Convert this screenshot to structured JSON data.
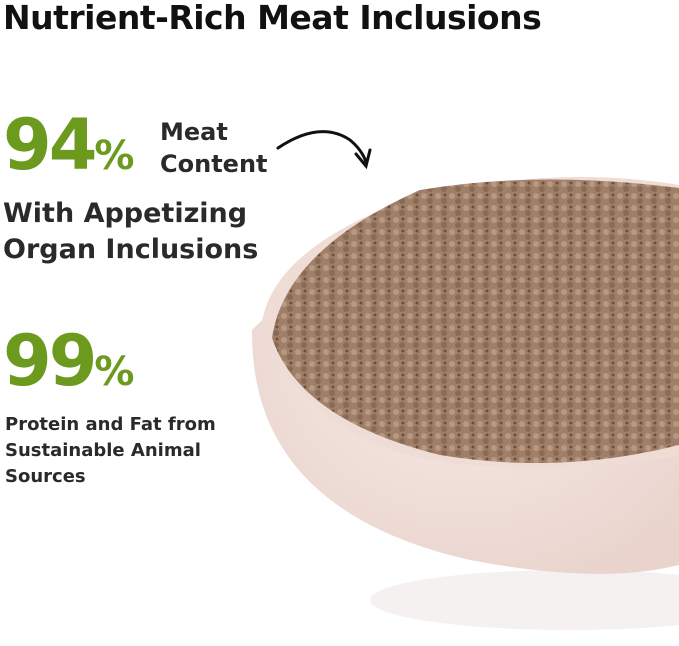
{
  "title": "Nutrient-Rich Meat Inclusions",
  "stat1": {
    "value": "94",
    "unit": "%",
    "label_line1": "Meat",
    "label_line2": "Content",
    "desc_line1": "With Appetizing",
    "desc_line2": "Organ Inclusions"
  },
  "stat2": {
    "value": "99",
    "unit": "%",
    "desc_line1": "Protein and Fat from",
    "desc_line2": "Sustainable Animal",
    "desc_line3": "Sources"
  },
  "colors": {
    "accent": "#6b9a1e",
    "text": "#2a2a2a",
    "bowl": "#f3e4df",
    "meat": "#9c7a64"
  },
  "image": {
    "subject": "wet cat food in ceramic bowl"
  }
}
